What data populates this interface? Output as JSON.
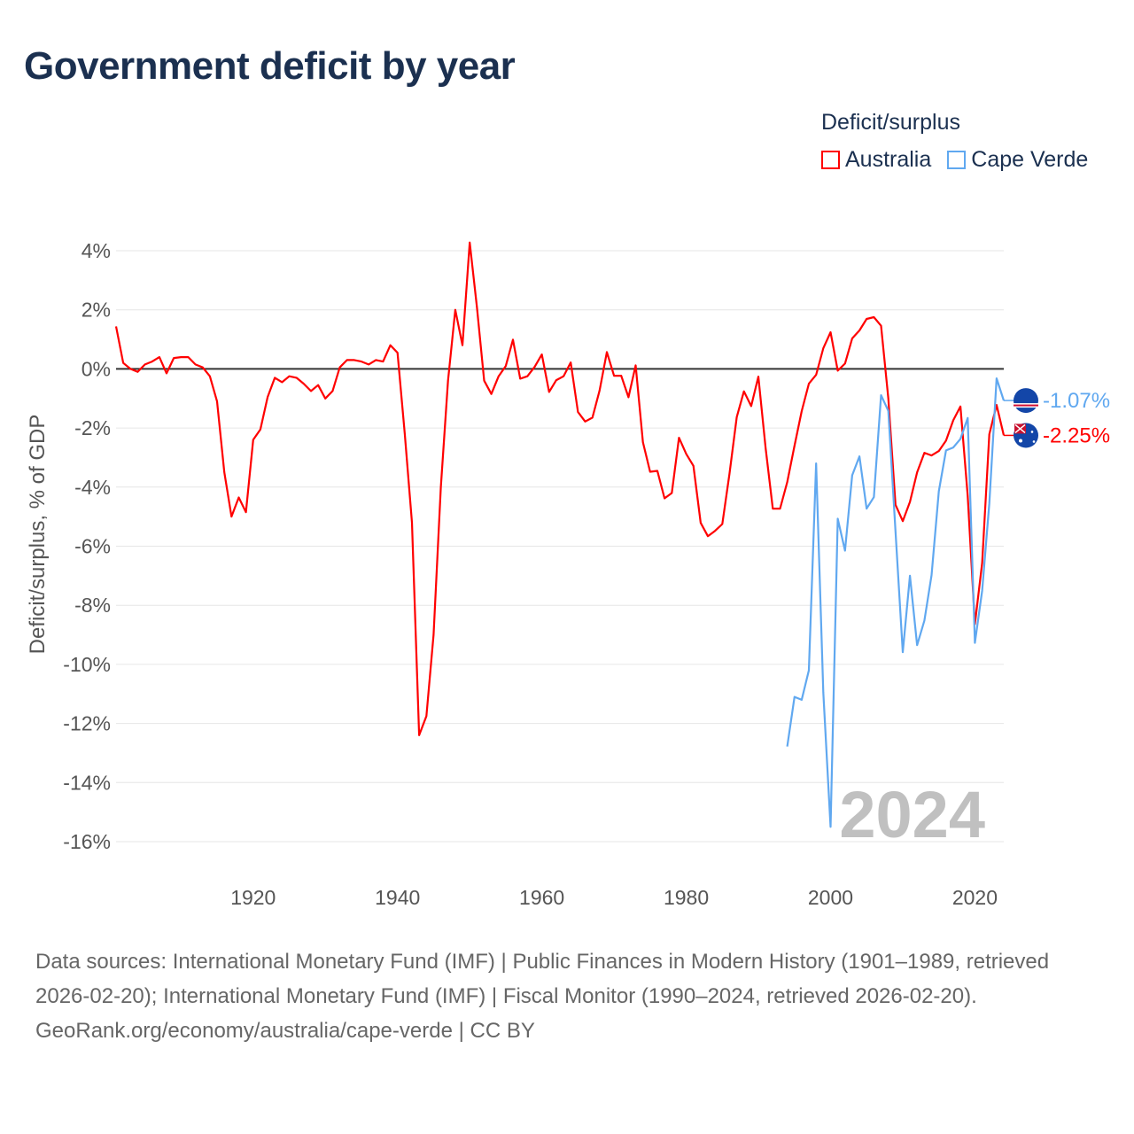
{
  "title": "Government deficit by year",
  "legend": {
    "title": "Deficit/surplus",
    "items": [
      {
        "label": "Australia",
        "color": "#ff0000"
      },
      {
        "label": "Cape Verde",
        "color": "#60a8f0"
      }
    ]
  },
  "watermark_year": "2024",
  "footer": {
    "sources": "Data sources: International Monetary Fund (IMF) | Public Finances in Modern History (1901–1989, retrieved 2026-02-20); International Monetary Fund (IMF) | Fiscal Monitor (1990–2024, retrieved 2026-02-20).",
    "credit": "GeoRank.org/economy/australia/cape-verde | CC BY"
  },
  "chart_data": {
    "type": "line",
    "title": "Government deficit by year",
    "xlabel": "",
    "ylabel": "Deficit/surplus, % of GDP",
    "xlim": [
      1901,
      2024
    ],
    "ylim": [
      -16,
      4
    ],
    "x_ticks": [
      1920,
      1940,
      1960,
      1980,
      2000,
      2020
    ],
    "y_ticks": [
      4,
      2,
      0,
      -2,
      -4,
      -6,
      -8,
      -10,
      -12,
      -14,
      -16
    ],
    "y_tick_labels": [
      "4%",
      "2%",
      "0%",
      "-2%",
      "-4%",
      "-6%",
      "-8%",
      "-10%",
      "-12%",
      "-14%",
      "-16%"
    ],
    "grid": true,
    "legend_position": "top-right",
    "series": [
      {
        "name": "Australia",
        "color": "#ff0000",
        "start_year": 1901,
        "end_label": "-2.25%",
        "flag": "australia-flag",
        "values": [
          1.44,
          0.2,
          0.0,
          -0.1,
          0.15,
          0.25,
          0.4,
          -0.15,
          0.37,
          0.4,
          0.4,
          0.15,
          0.05,
          -0.25,
          -1.1,
          -3.5,
          -5.0,
          -4.35,
          -4.85,
          -2.4,
          -2.05,
          -0.95,
          -0.3,
          -0.45,
          -0.25,
          -0.3,
          -0.5,
          -0.75,
          -0.55,
          -1.0,
          -0.75,
          0.05,
          0.3,
          0.3,
          0.25,
          0.15,
          0.3,
          0.25,
          0.8,
          0.55,
          -2.2,
          -5.2,
          -12.4,
          -11.75,
          -9.0,
          -4.0,
          -0.4,
          2.0,
          0.8,
          4.28,
          2.1,
          -0.4,
          -0.85,
          -0.25,
          0.1,
          0.99,
          -0.33,
          -0.25,
          0.07,
          0.49,
          -0.78,
          -0.38,
          -0.25,
          0.22,
          -1.46,
          -1.78,
          -1.65,
          -0.73,
          0.57,
          -0.23,
          -0.23,
          -0.96,
          0.12,
          -2.48,
          -3.48,
          -3.45,
          -4.38,
          -4.2,
          -2.33,
          -2.88,
          -3.28,
          -5.21,
          -5.66,
          -5.48,
          -5.25,
          -3.55,
          -1.63,
          -0.76,
          -1.26,
          -0.26,
          -2.68,
          -4.73,
          -4.73,
          -3.83,
          -2.6,
          -1.43,
          -0.5,
          -0.2,
          0.7,
          1.24,
          -0.06,
          0.18,
          1.03,
          1.3,
          1.69,
          1.75,
          1.46,
          -1.0,
          -4.6,
          -5.15,
          -4.5,
          -3.5,
          -2.84,
          -2.93,
          -2.78,
          -2.43,
          -1.74,
          -1.27,
          -4.3,
          -8.64,
          -6.57,
          -2.21,
          -1.22,
          -2.25
        ]
      },
      {
        "name": "Cape Verde",
        "color": "#60a8f0",
        "start_year": 1994,
        "end_label": "-1.07%",
        "flag": "cape-verde-flag",
        "values": [
          -12.78,
          -11.1,
          -11.2,
          -10.2,
          -3.2,
          -10.95,
          -15.5,
          -5.07,
          -6.15,
          -3.6,
          -2.96,
          -4.73,
          -4.34,
          -0.89,
          -1.42,
          -5.5,
          -9.59,
          -7.0,
          -9.35,
          -8.52,
          -6.98,
          -4.14,
          -2.76,
          -2.66,
          -2.37,
          -1.66,
          -9.27,
          -7.51,
          -4.55,
          -0.32,
          -1.07
        ]
      }
    ]
  }
}
